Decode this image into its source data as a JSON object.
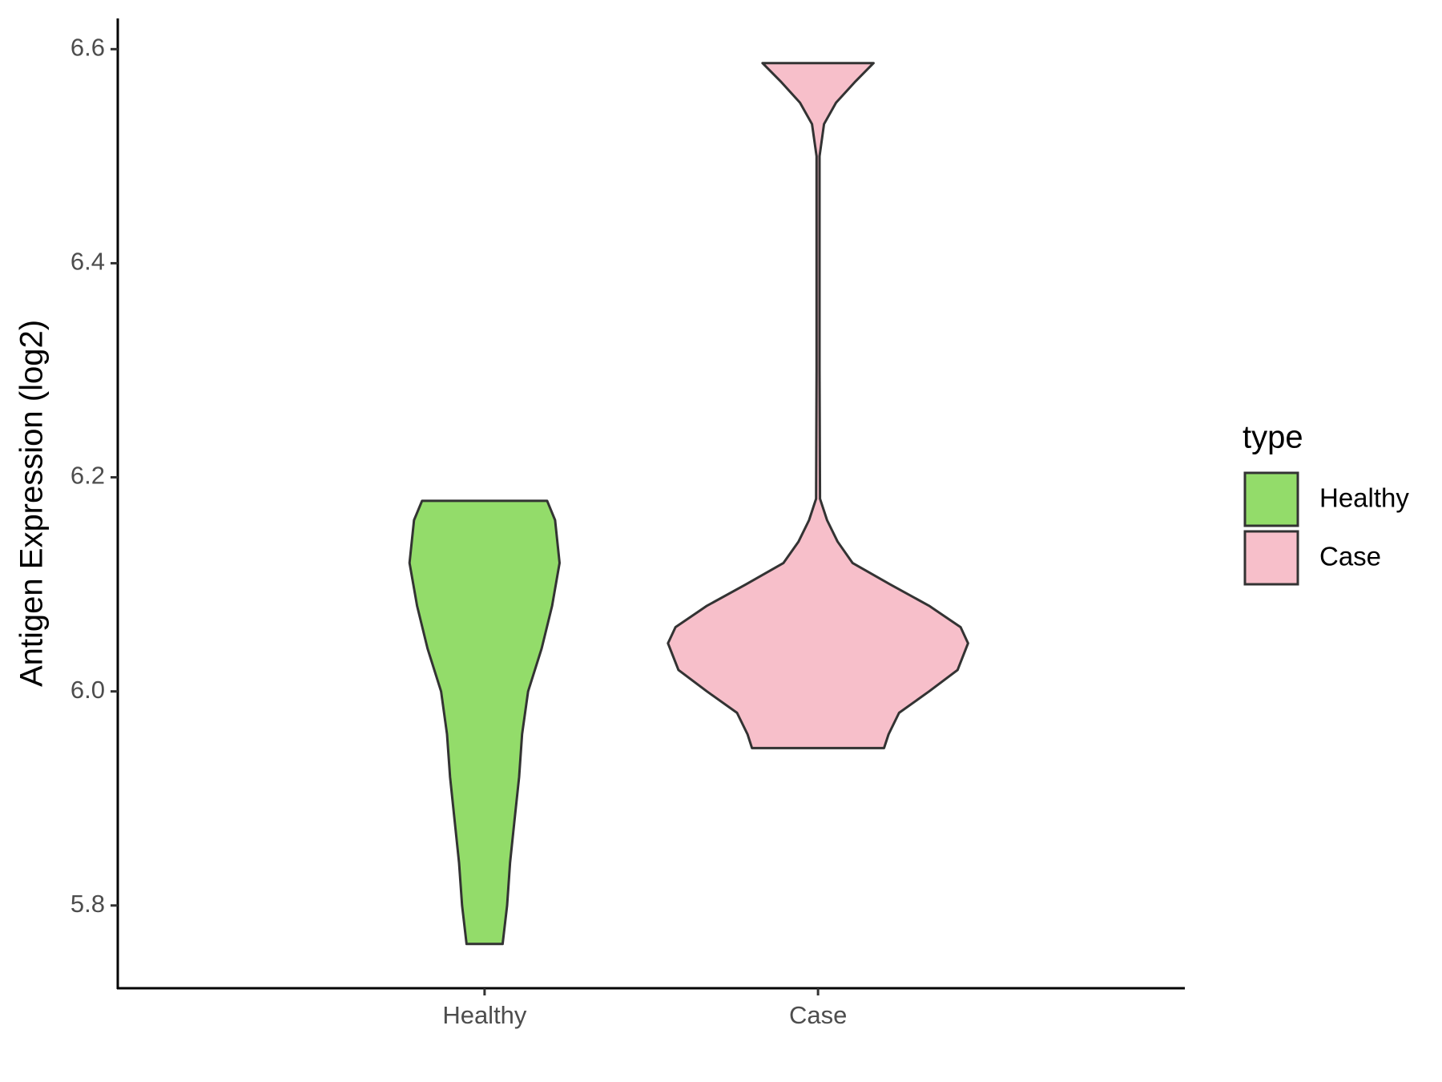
{
  "chart_data": {
    "type": "violin",
    "y_label": "Antigen Expression (log2)",
    "categories": [
      "Healthy",
      "Case"
    ],
    "legend_title": "type",
    "ylim": [
      5.7227,
      6.6287
    ],
    "yticks": [
      5.8,
      {
        "value": 6,
        "label": "6.0"
      },
      6.2,
      6.4,
      6.6
    ],
    "series": [
      {
        "name": "Healthy",
        "color": "#93dc6a",
        "y": [
          6.178,
          6.16,
          6.12,
          6.08,
          6.04,
          6.0,
          5.96,
          5.92,
          5.88,
          5.84,
          5.8,
          5.764
        ],
        "widths": [
          0.417,
          0.47,
          0.5,
          0.45,
          0.38,
          0.29,
          0.25,
          0.23,
          0.2,
          0.17,
          0.15,
          0.12
        ]
      },
      {
        "name": "Case",
        "color": "#f7bfca",
        "y": [
          6.587,
          6.57,
          6.55,
          6.53,
          6.5,
          6.3,
          6.18,
          6.16,
          6.14,
          6.12,
          6.1,
          6.08,
          6.06,
          6.045,
          6.02,
          6.0,
          5.98,
          5.96,
          5.947
        ],
        "widths": [
          0.37,
          0.25,
          0.12,
          0.04,
          0.01,
          0.01,
          0.013,
          0.06,
          0.13,
          0.23,
          0.48,
          0.74,
          0.95,
          1.0,
          0.93,
          0.74,
          0.54,
          0.47,
          0.44
        ]
      }
    ]
  }
}
